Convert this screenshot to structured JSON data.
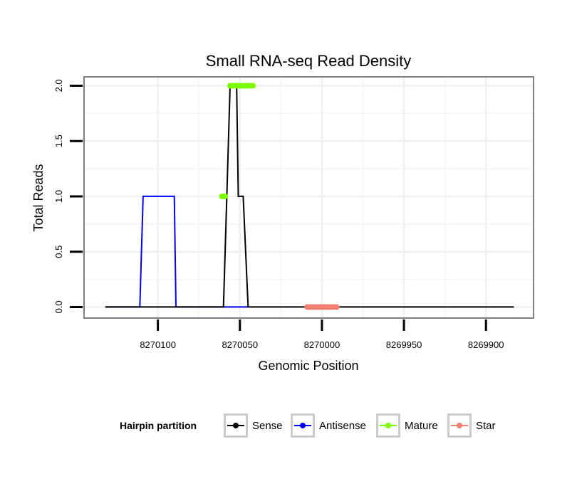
{
  "chart_data": {
    "type": "line",
    "title": "Small RNA-seq Read Density",
    "xlabel": "Genomic Position",
    "ylabel": "Total Reads",
    "x_reversed": true,
    "xlim": [
      8270145,
      8269871
    ],
    "ylim": [
      -0.1,
      2.08
    ],
    "x_ticks": [
      8270100,
      8270050,
      8270000,
      8269950,
      8269900
    ],
    "x_tick_labels": [
      "8270100",
      "8270050",
      "8270000",
      "8269950",
      "8269900"
    ],
    "y_ticks": [
      0.0,
      0.5,
      1.0,
      1.5,
      2.0
    ],
    "y_tick_labels": [
      "0.0",
      "0.5",
      "1.0",
      "1.5",
      "2.0"
    ],
    "grid": true,
    "legend": {
      "title": "Hairpin partition",
      "position": "bottom",
      "entries": [
        {
          "label": "Sense",
          "color": "#000000"
        },
        {
          "label": "Antisense",
          "color": "#0000ff"
        },
        {
          "label": "Mature",
          "color": "#7cfc00"
        },
        {
          "label": "Star",
          "color": "#f08070"
        }
      ]
    },
    "series": [
      {
        "name": "Sense",
        "color": "#000000",
        "kind": "line",
        "x": [
          8270132,
          8270060,
          8270058,
          8270056,
          8270052,
          8270051,
          8270048,
          8270045,
          8269883
        ],
        "y": [
          0,
          0,
          1,
          2,
          2,
          1,
          1,
          0,
          0
        ]
      },
      {
        "name": "Antisense",
        "color": "#0000ff",
        "kind": "line",
        "x": [
          8270132,
          8270111,
          8270109,
          8270090,
          8270089,
          8270060,
          8270058,
          8270045
        ],
        "y": [
          0,
          0,
          1,
          1,
          0,
          0,
          0,
          0
        ]
      },
      {
        "name": "Mature",
        "color": "#7cfc00",
        "kind": "points",
        "x": [
          8270061,
          8270060,
          8270059,
          8270056,
          8270055,
          8270054,
          8270053,
          8270052,
          8270051,
          8270050,
          8270049,
          8270048,
          8270047,
          8270046,
          8270045,
          8270044,
          8270043,
          8270042
        ],
        "y": [
          1,
          1,
          1,
          2,
          2,
          2,
          2,
          2,
          2,
          2,
          2,
          2,
          2,
          2,
          2,
          2,
          2,
          2
        ]
      },
      {
        "name": "Star",
        "color": "#f08070",
        "kind": "points",
        "x": [
          8270009,
          8270008,
          8270007,
          8270006,
          8270005,
          8270004,
          8270003,
          8270002,
          8270001,
          8270000,
          8269999,
          8269998,
          8269997,
          8269996,
          8269995,
          8269994,
          8269993,
          8269992,
          8269991
        ],
        "y": [
          0,
          0,
          0,
          0,
          0,
          0,
          0,
          0,
          0,
          0,
          0,
          0,
          0,
          0,
          0,
          0,
          0,
          0,
          0
        ]
      }
    ]
  }
}
